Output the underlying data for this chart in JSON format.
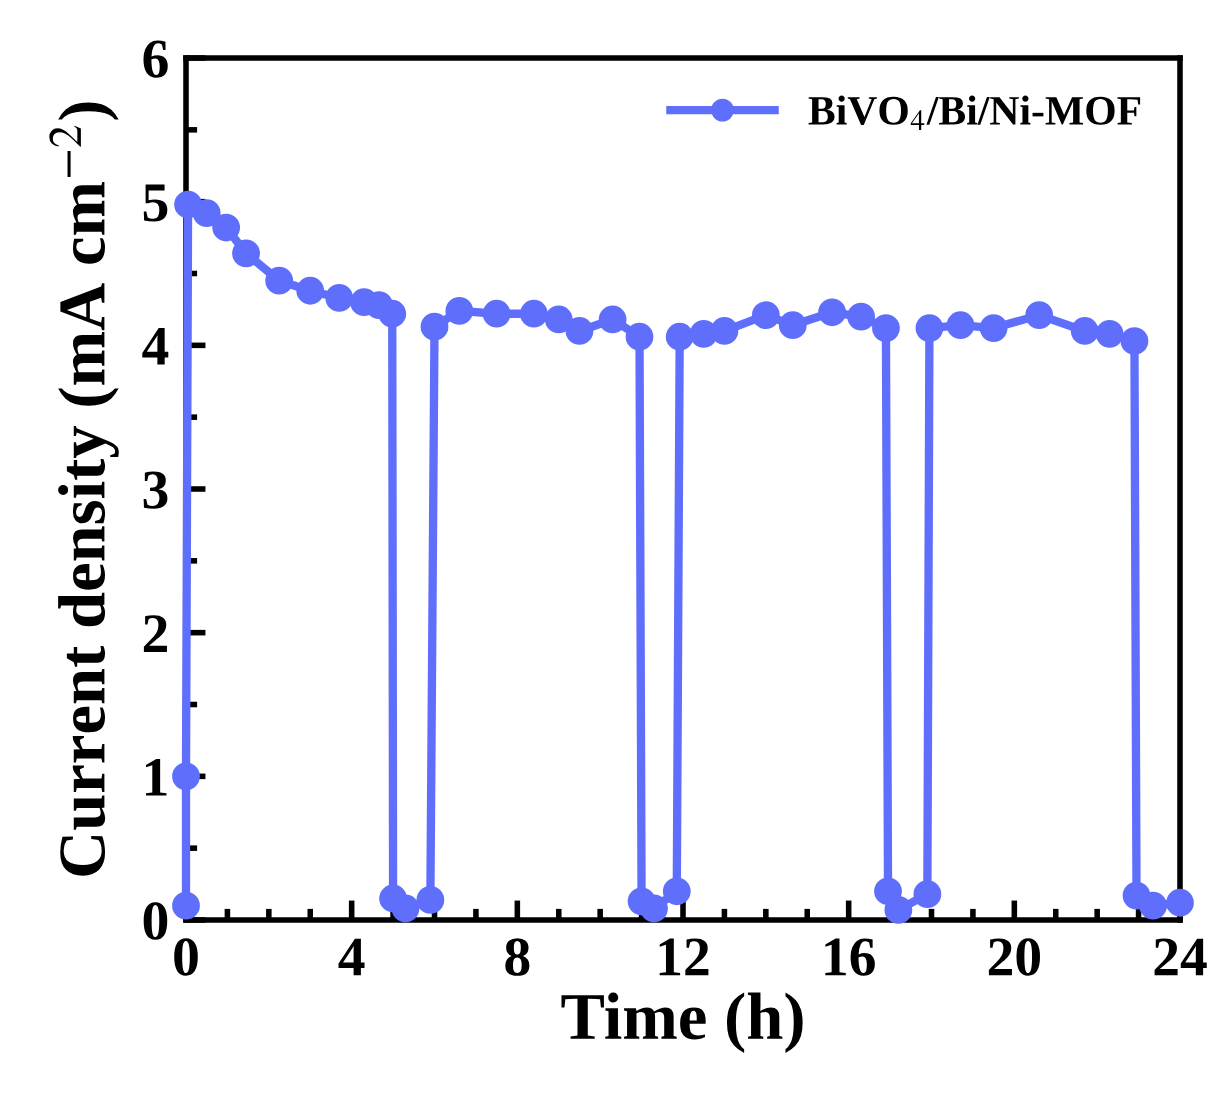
{
  "chart_data": {
    "type": "line",
    "xlabel": "Time (h)",
    "ylabel": "Current density (mA cm$^{−2}$)",
    "xlim": [
      0,
      24
    ],
    "ylim": [
      0,
      6
    ],
    "xticks": [
      0,
      4,
      8,
      12,
      16,
      20,
      24
    ],
    "yticks": [
      0,
      1,
      2,
      3,
      4,
      5,
      6
    ],
    "marker": "circle",
    "line_style": "solid",
    "legend": "top right",
    "grid": false,
    "series": [
      {
        "name": "BiVO$_{4}$/Bi/Ni-MOF",
        "color": "#5f6ffc",
        "x": [
          0,
          0,
          0.05,
          0.5,
          0.97,
          1.45,
          2.25,
          3.0,
          3.7,
          4.3,
          4.66,
          4.98,
          5.0,
          5.3,
          5.9,
          6.0,
          6.6,
          7.5,
          8.4,
          9.0,
          9.5,
          10.3,
          10.95,
          11.0,
          11.3,
          11.85,
          11.92,
          12.5,
          13.0,
          14.0,
          14.65,
          15.6,
          16.3,
          16.9,
          16.95,
          17.2,
          17.9,
          17.95,
          18.7,
          19.5,
          20.6,
          21.7,
          22.3,
          22.9,
          22.95,
          23.35,
          24
        ],
        "values": [
          0.1,
          1.0,
          4.98,
          4.92,
          4.82,
          4.64,
          4.45,
          4.38,
          4.33,
          4.3,
          4.28,
          4.22,
          0.15,
          0.08,
          0.14,
          4.13,
          4.24,
          4.22,
          4.22,
          4.18,
          4.1,
          4.18,
          4.06,
          0.13,
          0.08,
          0.2,
          4.06,
          4.08,
          4.1,
          4.21,
          4.14,
          4.23,
          4.2,
          4.12,
          0.2,
          0.07,
          0.18,
          4.12,
          4.14,
          4.12,
          4.21,
          4.1,
          4.08,
          4.03,
          0.17,
          0.1,
          0.12
        ]
      }
    ]
  }
}
